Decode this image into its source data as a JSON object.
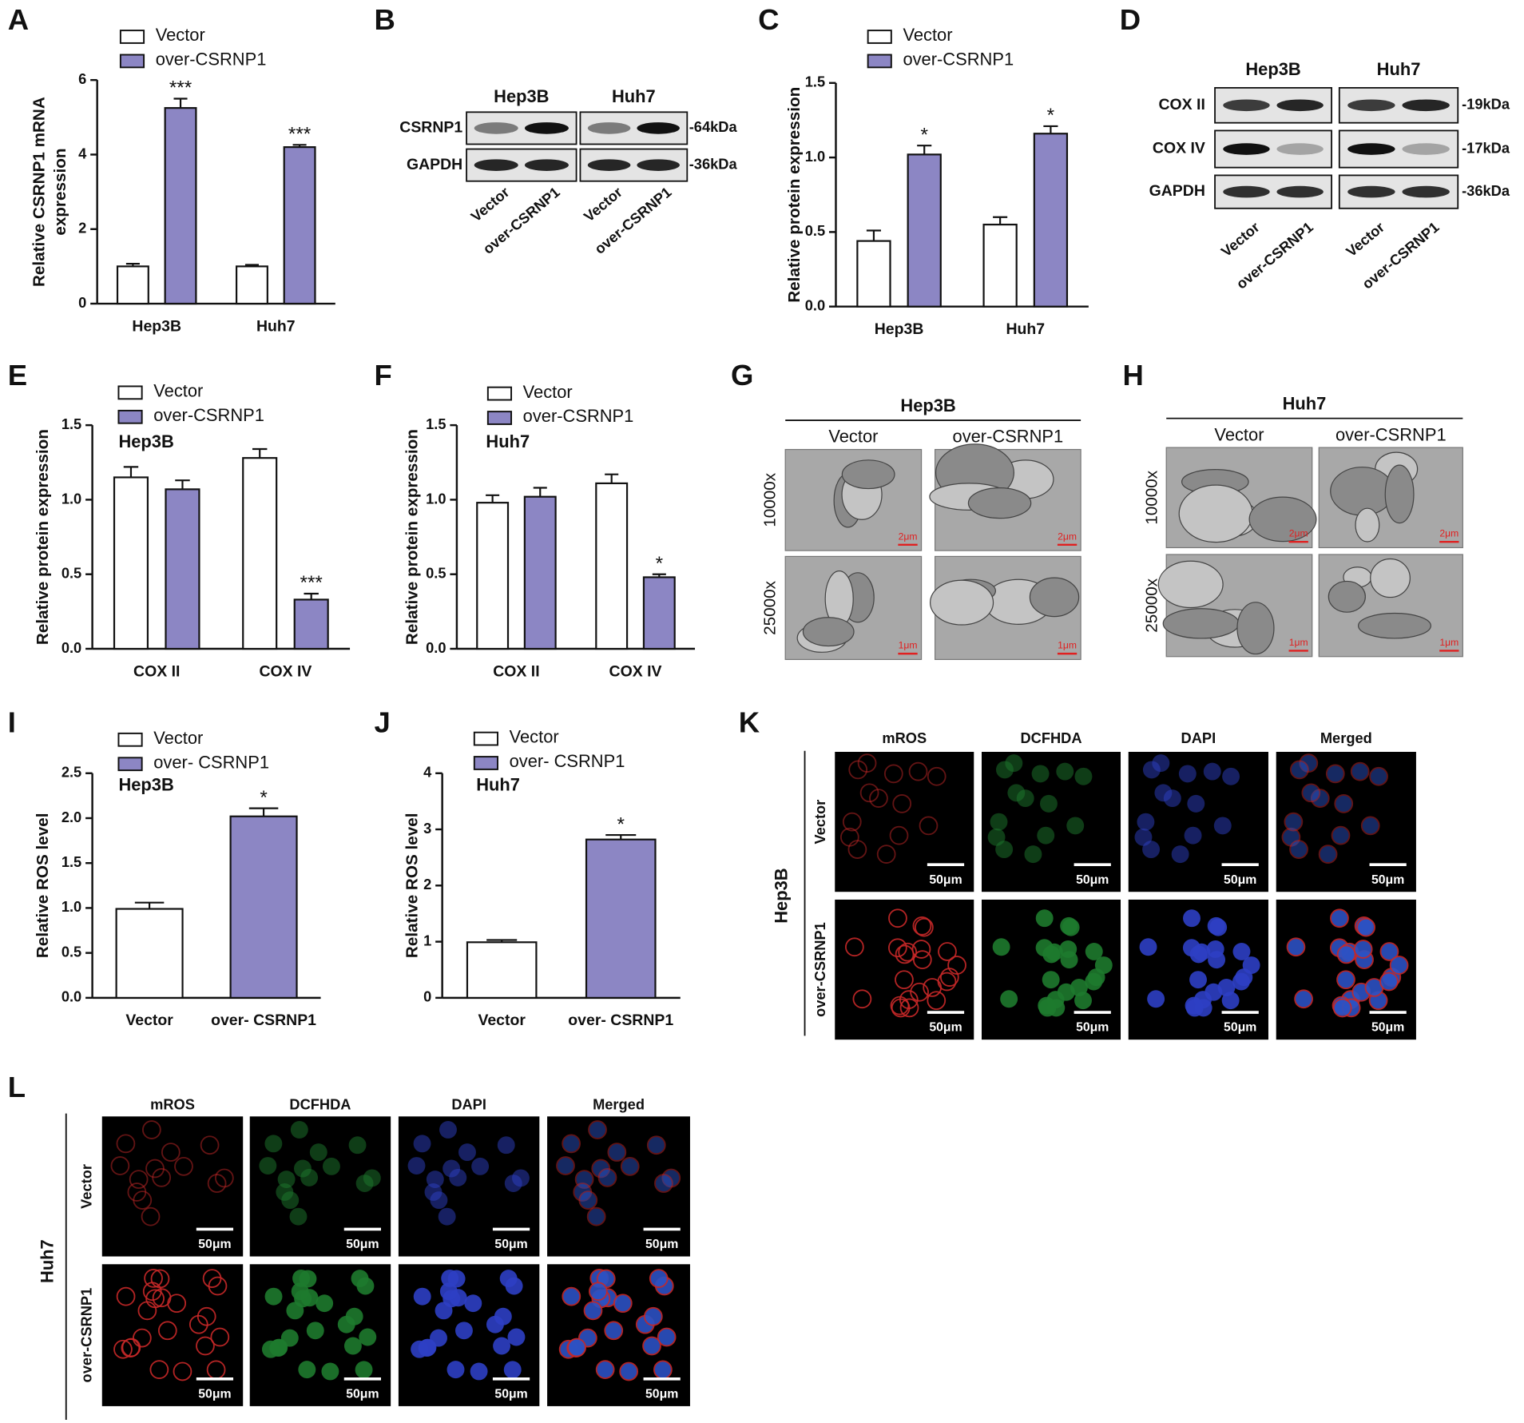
{
  "chart_data": [
    {
      "panel": "A",
      "type": "bar",
      "ylabel": [
        "Relative CSRNP1 mRNA",
        "expression"
      ],
      "categories": [
        "Hep3B",
        "Huh7"
      ],
      "series": [
        {
          "name": "Vector",
          "color": "#ffffff",
          "values": [
            1.0,
            1.0
          ],
          "errors": [
            0.07,
            0.04
          ],
          "annotations": [
            null,
            null
          ]
        },
        {
          "name": "over-CSRNP1",
          "color": "#8c86c4",
          "values": [
            5.25,
            4.2
          ],
          "errors": [
            0.25,
            0.06
          ],
          "annotations": [
            "***",
            "***"
          ]
        }
      ],
      "ylim": [
        0,
        6
      ],
      "yticks": [
        0,
        2,
        4,
        6
      ]
    },
    {
      "panel": "C",
      "type": "bar",
      "ylabel": "Relative protein expression",
      "categories": [
        "Hep3B",
        "Huh7"
      ],
      "series": [
        {
          "name": "Vector",
          "color": "#ffffff",
          "values": [
            0.44,
            0.55
          ],
          "errors": [
            0.07,
            0.05
          ],
          "annotations": [
            null,
            null
          ]
        },
        {
          "name": "over-CSRNP1",
          "color": "#8c86c4",
          "values": [
            1.02,
            1.16
          ],
          "errors": [
            0.06,
            0.05
          ],
          "annotations": [
            "*",
            "*"
          ]
        }
      ],
      "ylim": [
        0,
        1.5
      ],
      "yticks": [
        {
          "value": 0,
          "label": "0.0"
        },
        0.5,
        {
          "value": 1,
          "label": "1.0"
        },
        1.5
      ]
    },
    {
      "panel": "E",
      "type": "bar",
      "subtitle": "Hep3B",
      "ylabel": "Relative protein expression",
      "categories": [
        "COX II",
        "COX IV"
      ],
      "series": [
        {
          "name": "Vector",
          "color": "#ffffff",
          "values": [
            1.15,
            1.28
          ],
          "errors": [
            0.07,
            0.06
          ],
          "annotations": [
            null,
            null
          ]
        },
        {
          "name": "over-CSRNP1",
          "color": "#8c86c4",
          "values": [
            1.07,
            0.33
          ],
          "errors": [
            0.06,
            0.04
          ],
          "annotations": [
            null,
            "***"
          ]
        }
      ],
      "ylim": [
        0,
        1.5
      ],
      "yticks": [
        {
          "value": 0,
          "label": "0.0"
        },
        0.5,
        {
          "value": 1,
          "label": "1.0"
        },
        1.5
      ]
    },
    {
      "panel": "F",
      "type": "bar",
      "subtitle": "Huh7",
      "ylabel": "Relative protein expression",
      "categories": [
        "COX II",
        "COX IV"
      ],
      "series": [
        {
          "name": "Vector",
          "color": "#ffffff",
          "values": [
            0.98,
            1.11
          ],
          "errors": [
            0.05,
            0.06
          ],
          "annotations": [
            null,
            null
          ]
        },
        {
          "name": "over-CSRNP1",
          "color": "#8c86c4",
          "values": [
            1.02,
            0.48
          ],
          "errors": [
            0.06,
            0.02
          ],
          "annotations": [
            null,
            "*"
          ]
        }
      ],
      "ylim": [
        0,
        1.5
      ],
      "yticks": [
        {
          "value": 0,
          "label": "0.0"
        },
        0.5,
        {
          "value": 1,
          "label": "1.0"
        },
        1.5
      ]
    },
    {
      "panel": "I",
      "type": "bar",
      "subtitle": "Hep3B",
      "ylabel": "Relative ROS level",
      "categories": [
        "Vector",
        "over- CSRNP1"
      ],
      "series": [
        {
          "name": "Vector",
          "color": "#ffffff",
          "values": [
            0.99,
            null
          ],
          "errors": [
            0.07,
            null
          ],
          "annotations": [
            null,
            null
          ]
        },
        {
          "name": "over- CSRNP1",
          "color": "#8c86c4",
          "values": [
            null,
            2.02
          ],
          "errors": [
            null,
            0.09
          ],
          "annotations": [
            null,
            "*"
          ]
        }
      ],
      "ylim": [
        0,
        2.5
      ],
      "yticks": [
        {
          "value": 0,
          "label": "0.0"
        },
        0.5,
        {
          "value": 1,
          "label": "1.0"
        },
        1.5,
        {
          "value": 2,
          "label": "2.0"
        },
        2.5
      ]
    },
    {
      "panel": "J",
      "type": "bar",
      "subtitle": "Huh7",
      "ylabel": "Relative ROS level",
      "categories": [
        "Vector",
        "over- CSRNP1"
      ],
      "series": [
        {
          "name": "Vector",
          "color": "#ffffff",
          "values": [
            0.99,
            null
          ],
          "errors": [
            0.04,
            null
          ],
          "annotations": [
            null,
            null
          ]
        },
        {
          "name": "over- CSRNP1",
          "color": "#8c86c4",
          "values": [
            null,
            2.82
          ],
          "errors": [
            null,
            0.08
          ],
          "annotations": [
            null,
            "*"
          ]
        }
      ],
      "ylim": [
        0,
        4
      ],
      "yticks": [
        0,
        1,
        2,
        3,
        4
      ]
    }
  ],
  "blots": [
    {
      "panel": "B",
      "cell_lines": [
        "Hep3B",
        "Huh7"
      ],
      "proteins": [
        "CSRNP1",
        "GAPDH"
      ],
      "sizes": [
        "-64kDa",
        "-36kDa"
      ],
      "lanes": [
        "Vector",
        "over-CSRNP1",
        "Vector",
        "over-CSRNP1"
      ]
    },
    {
      "panel": "D",
      "cell_lines": [
        "Hep3B",
        "Huh7"
      ],
      "proteins": [
        "COX II",
        "COX IV",
        "GAPDH"
      ],
      "sizes": [
        "-19kDa",
        "-17kDa",
        "-36kDa"
      ],
      "lanes": [
        "Vector",
        "over-CSRNP1",
        "Vector",
        "over-CSRNP1"
      ]
    }
  ],
  "micrographs": [
    {
      "panel": "G",
      "title": "Hep3B",
      "columns": [
        "Vector",
        "over-CSRNP1"
      ],
      "rows": [
        "10000x",
        "25000x"
      ],
      "scale_bars": [
        [
          "2μm",
          "2μm"
        ],
        [
          "1μm",
          "1μm"
        ]
      ]
    },
    {
      "panel": "H",
      "title": "Huh7",
      "columns": [
        "Vector",
        "over-CSRNP1"
      ],
      "rows": [
        "10000x",
        "25000x"
      ],
      "scale_bars": [
        [
          "2μm",
          "2μm"
        ],
        [
          "1μm",
          "1μm"
        ]
      ]
    }
  ],
  "fluorescence": [
    {
      "panel": "K",
      "cell_line": "Hep3B",
      "columns": [
        "mROS",
        "DCFHDA",
        "DAPI",
        "Merged"
      ],
      "rows": [
        "Vector",
        "over-CSRNP1"
      ],
      "scale_bar": "50μm"
    },
    {
      "panel": "L",
      "cell_line": "Huh7",
      "columns": [
        "mROS",
        "DCFHDA",
        "DAPI",
        "Merged"
      ],
      "rows": [
        "Vector",
        "over-CSRNP1"
      ],
      "scale_bar": "50μm"
    }
  ]
}
